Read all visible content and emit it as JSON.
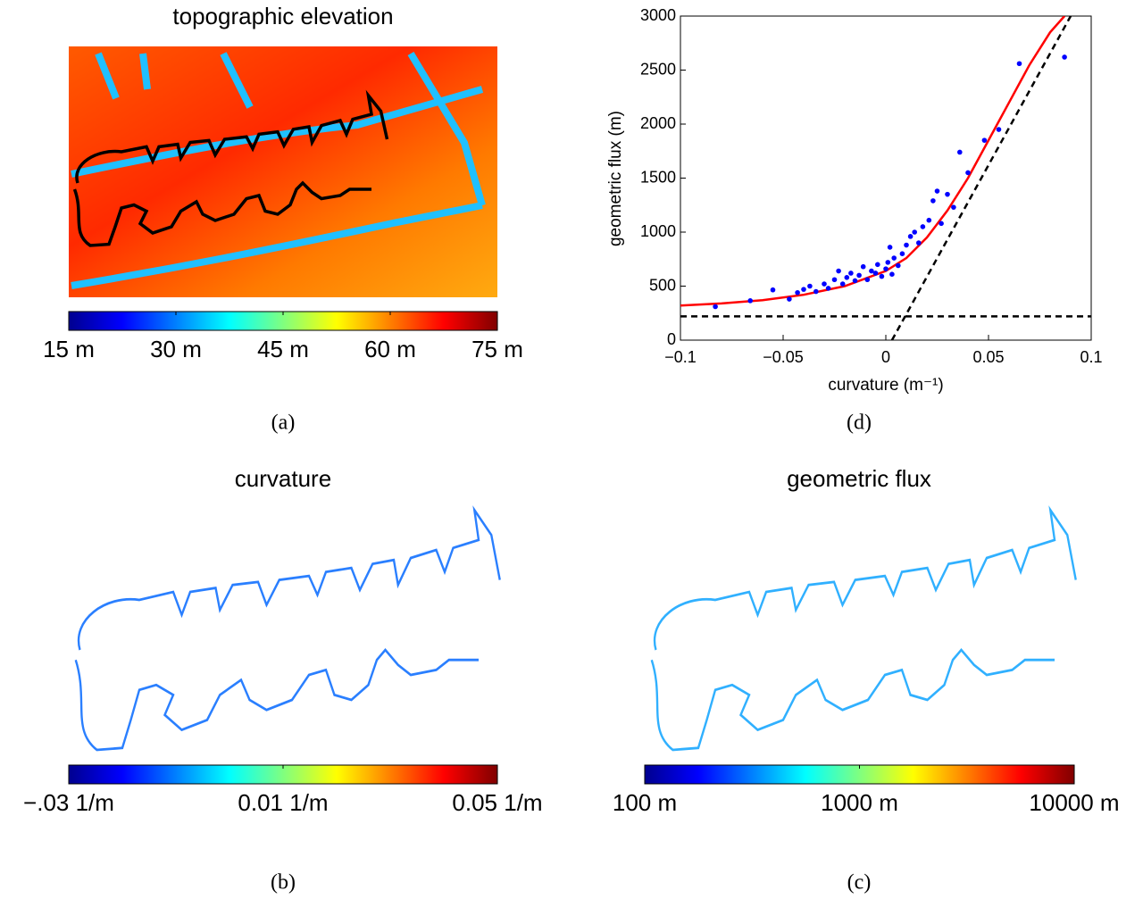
{
  "panels": [
    {
      "title": "topographic elevation",
      "colorbar_labels": [
        "15 m",
        "30 m",
        "45 m",
        "60 m",
        "75 m"
      ],
      "caption": "(a)"
    },
    {
      "title": "curvature",
      "colorbar_labels": [
        "−.03 1/m",
        "0.01 1/m",
        "0.05 1/m"
      ],
      "caption": "(b)"
    },
    {
      "title": "geometric flux",
      "colorbar_labels": [
        "100 m",
        "1000 m",
        "10000 m"
      ],
      "caption": "(c)"
    }
  ],
  "chart_data": {
    "type": "scatter",
    "caption": "(d)",
    "xlabel": "curvature  (m⁻¹)",
    "ylabel": "geometric flux (m)",
    "xlim": [
      -0.1,
      0.1
    ],
    "ylim": [
      0,
      3000
    ],
    "xticks": [
      {
        "value": -0.1,
        "label": "−0.1"
      },
      {
        "value": -0.05,
        "label": "−0.05"
      },
      0,
      0.05,
      0.1
    ],
    "yticks": [
      0,
      500,
      1000,
      1500,
      2000,
      2500,
      3000
    ],
    "points": {
      "color": "#0000ff",
      "x": [
        -0.083,
        -0.066,
        -0.055,
        -0.047,
        -0.043,
        -0.04,
        -0.037,
        -0.034,
        -0.03,
        -0.028,
        -0.025,
        -0.023,
        -0.021,
        -0.019,
        -0.017,
        -0.015,
        -0.013,
        -0.011,
        -0.009,
        -0.007,
        -0.005,
        -0.004,
        -0.002,
        0,
        0.001,
        0.002,
        0.003,
        0.004,
        0.006,
        0.008,
        0.01,
        0.012,
        0.014,
        0.016,
        0.018,
        0.021,
        0.023,
        0.025,
        0.027,
        0.03,
        0.033,
        0.036,
        0.04,
        0.048,
        0.055,
        0.065,
        0.087
      ],
      "y": [
        310,
        365,
        465,
        380,
        440,
        470,
        500,
        450,
        520,
        480,
        560,
        640,
        520,
        580,
        620,
        550,
        600,
        680,
        560,
        640,
        620,
        700,
        590,
        660,
        720,
        860,
        610,
        760,
        690,
        800,
        880,
        960,
        1000,
        900,
        1050,
        1110,
        1290,
        1380,
        1080,
        1350,
        1230,
        1740,
        1550,
        1850,
        1950,
        2560,
        2620
      ]
    },
    "fit": {
      "color": "#ff0000",
      "x": [
        -0.1,
        -0.08,
        -0.06,
        -0.04,
        -0.02,
        0,
        0.01,
        0.02,
        0.03,
        0.04,
        0.05,
        0.06,
        0.07,
        0.08,
        0.087
      ],
      "y": [
        320,
        340,
        370,
        420,
        500,
        640,
        760,
        950,
        1200,
        1500,
        1850,
        2200,
        2550,
        2850,
        3000
      ]
    },
    "asymptotes": [
      {
        "color": "#000000",
        "x": [
          0.003,
          0.09
        ],
        "y": [
          0,
          3000
        ]
      },
      {
        "color": "#000000",
        "x": [
          -0.1,
          0.1
        ],
        "y": [
          220,
          220
        ]
      }
    ]
  }
}
